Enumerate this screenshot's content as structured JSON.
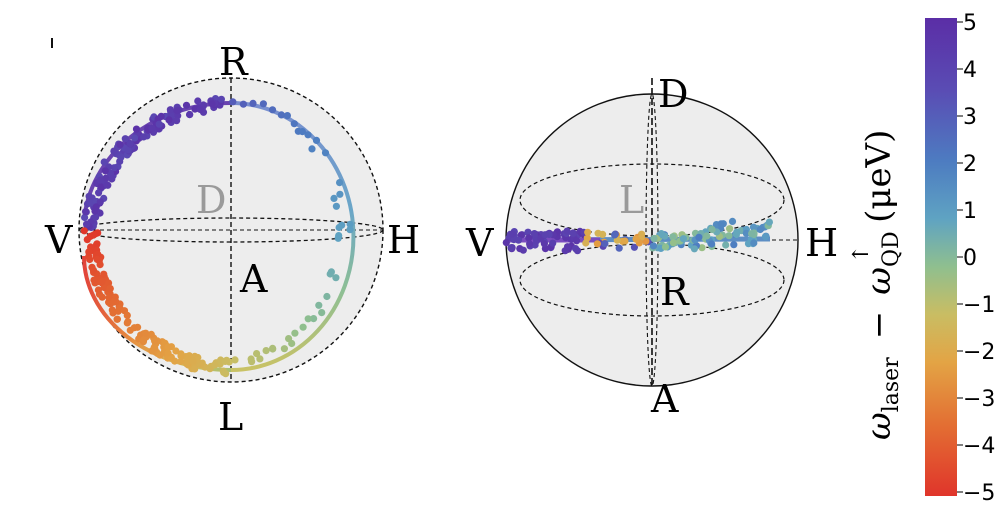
{
  "left_sphere": {
    "labels": {
      "top": "R",
      "bottom": "L",
      "left": "V",
      "right": "H",
      "center_upper": "D",
      "center_lower": "A"
    }
  },
  "right_sphere": {
    "labels": {
      "top": "D",
      "bottom": "A",
      "left": "V",
      "right": "H",
      "center_upper": "L",
      "center_lower": "R"
    }
  },
  "colorbar": {
    "ticks": [
      "5",
      "4",
      "3",
      "2",
      "1",
      "0",
      "−1",
      "−2",
      "−3",
      "−4",
      "−5"
    ],
    "label_main": "ω",
    "label_main_sub": "laser",
    "label_minus": "−",
    "label_second": "ω",
    "label_second_sub": "QD",
    "label_second_sup": "↑",
    "label_unit": "(μeV)",
    "range": [
      -5,
      5
    ]
  },
  "colors": {
    "sphere_fill": "#ededed",
    "grid_line": "#111111",
    "gray_label": "#9a9a9a"
  }
}
